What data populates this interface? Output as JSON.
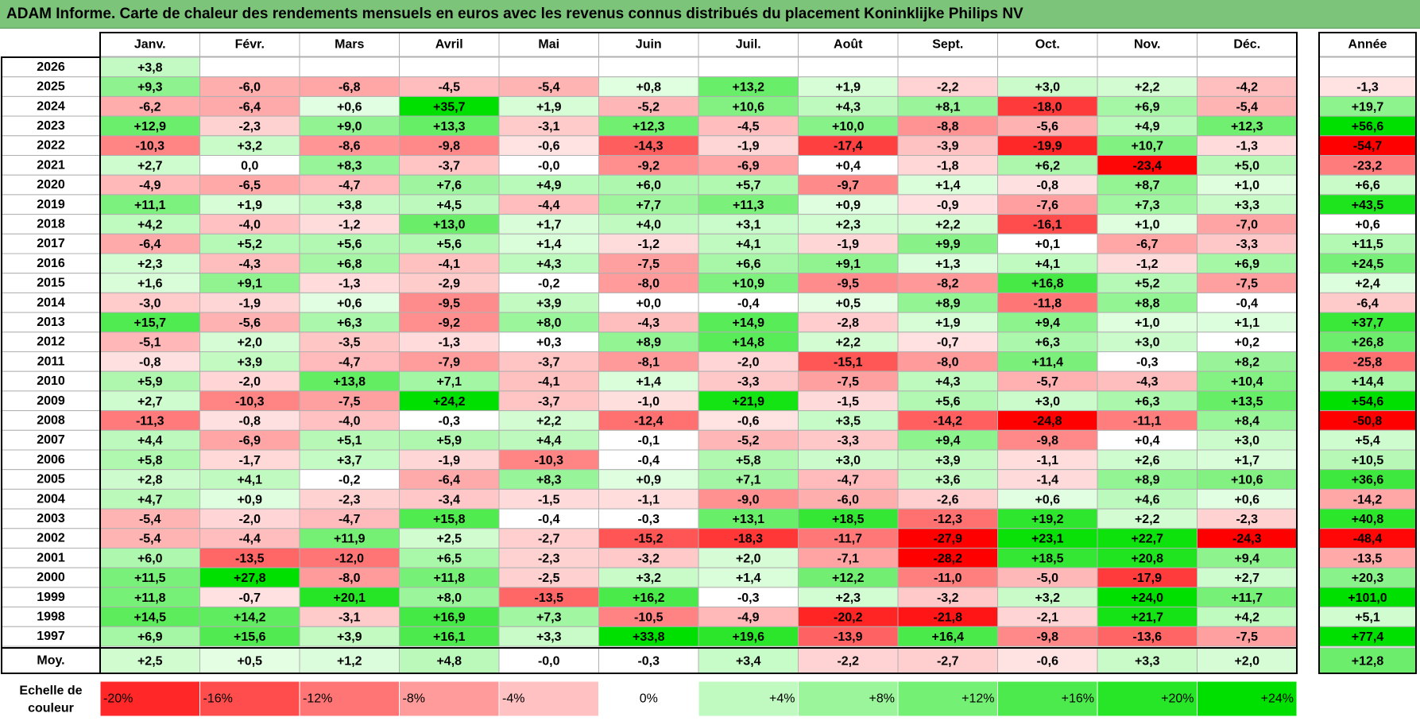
{
  "title": "ADAM Informe. Carte de chaleur des rendements mensuels en euros avec les revenus connus distribués du placement Koninklijke Philips NV",
  "chart_data": {
    "type": "heatmap",
    "columns": [
      "Janv.",
      "Févr.",
      "Mars",
      "Avril",
      "Mai",
      "Juin",
      "Juil.",
      "Août",
      "Sept.",
      "Oct.",
      "Nov.",
      "Déc."
    ],
    "year_column_label": "Année",
    "rows": [
      {
        "year": "2026",
        "months": [
          "+3,8",
          null,
          null,
          null,
          null,
          null,
          null,
          null,
          null,
          null,
          null,
          null
        ],
        "annual": ""
      },
      {
        "year": "2025",
        "months": [
          "+9,3",
          "-6,0",
          "-6,8",
          "-4,5",
          "-5,4",
          "+0,8",
          "+13,2",
          "+1,9",
          "-2,2",
          "+3,0",
          "+2,2",
          "-4,2"
        ],
        "annual": "-1,3"
      },
      {
        "year": "2024",
        "months": [
          "-6,2",
          "-6,4",
          "+0,6",
          "+35,7",
          "+1,9",
          "-5,2",
          "+10,6",
          "+4,3",
          "+8,1",
          "-18,0",
          "+6,9",
          "-5,4"
        ],
        "annual": "+19,7"
      },
      {
        "year": "2023",
        "months": [
          "+12,9",
          "-2,3",
          "+9,0",
          "+13,3",
          "-3,1",
          "+12,3",
          "-4,5",
          "+10,0",
          "-8,8",
          "-5,6",
          "+4,9",
          "+12,3"
        ],
        "annual": "+56,6"
      },
      {
        "year": "2022",
        "months": [
          "-10,3",
          "+3,2",
          "-8,6",
          "-9,8",
          "-0,6",
          "-14,3",
          "-1,9",
          "-17,4",
          "-3,9",
          "-19,9",
          "+10,7",
          "-1,3"
        ],
        "annual": "-54,7"
      },
      {
        "year": "2021",
        "months": [
          "+2,7",
          "0,0",
          "+8,3",
          "-3,7",
          "-0,0",
          "-9,2",
          "-6,9",
          "+0,4",
          "-1,8",
          "+6,2",
          "-23,4",
          "+5,0"
        ],
        "annual": "-23,2"
      },
      {
        "year": "2020",
        "months": [
          "-4,9",
          "-6,5",
          "-4,7",
          "+7,6",
          "+4,9",
          "+6,0",
          "+5,7",
          "-9,7",
          "+1,4",
          "-0,8",
          "+8,7",
          "+1,0"
        ],
        "annual": "+6,6"
      },
      {
        "year": "2019",
        "months": [
          "+11,1",
          "+1,9",
          "+3,8",
          "+4,5",
          "-4,4",
          "+7,7",
          "+11,3",
          "+0,9",
          "-0,9",
          "-7,6",
          "+7,3",
          "+3,3"
        ],
        "annual": "+43,5"
      },
      {
        "year": "2018",
        "months": [
          "+4,2",
          "-4,0",
          "-1,2",
          "+13,0",
          "+1,7",
          "+4,0",
          "+3,1",
          "+2,3",
          "+2,2",
          "-16,1",
          "+1,0",
          "-7,0"
        ],
        "annual": "+0,6"
      },
      {
        "year": "2017",
        "months": [
          "-6,4",
          "+5,2",
          "+5,6",
          "+5,6",
          "+1,4",
          "-1,2",
          "+4,1",
          "-1,9",
          "+9,9",
          "+0,1",
          "-6,7",
          "-3,3"
        ],
        "annual": "+11,5"
      },
      {
        "year": "2016",
        "months": [
          "+2,3",
          "-4,3",
          "+6,8",
          "-4,1",
          "+4,3",
          "-7,5",
          "+6,6",
          "+9,1",
          "+1,3",
          "+4,1",
          "-1,2",
          "+6,9"
        ],
        "annual": "+24,5"
      },
      {
        "year": "2015",
        "months": [
          "+1,6",
          "+9,1",
          "-1,3",
          "-2,9",
          "-0,2",
          "-8,0",
          "+10,9",
          "-9,5",
          "-8,2",
          "+16,8",
          "+5,2",
          "-7,5"
        ],
        "annual": "+2,4"
      },
      {
        "year": "2014",
        "months": [
          "-3,0",
          "-1,9",
          "+0,6",
          "-9,5",
          "+3,9",
          "+0,0",
          "-0,4",
          "+0,5",
          "+8,9",
          "-11,8",
          "+8,8",
          "-0,4"
        ],
        "annual": "-6,4"
      },
      {
        "year": "2013",
        "months": [
          "+15,7",
          "-5,6",
          "+6,3",
          "-9,2",
          "+8,0",
          "-4,3",
          "+14,9",
          "-2,8",
          "+1,9",
          "+9,4",
          "+1,0",
          "+1,1"
        ],
        "annual": "+37,7"
      },
      {
        "year": "2012",
        "months": [
          "-5,1",
          "+2,0",
          "-3,5",
          "-1,3",
          "+0,3",
          "+8,9",
          "+14,8",
          "+2,2",
          "-0,7",
          "+6,3",
          "+3,0",
          "+0,2"
        ],
        "annual": "+26,8"
      },
      {
        "year": "2011",
        "months": [
          "-0,8",
          "+3,9",
          "-4,7",
          "-7,9",
          "-3,7",
          "-8,1",
          "-2,0",
          "-15,1",
          "-8,0",
          "+11,4",
          "-0,3",
          "+8,2"
        ],
        "annual": "-25,8"
      },
      {
        "year": "2010",
        "months": [
          "+5,9",
          "-2,0",
          "+13,8",
          "+7,1",
          "-4,1",
          "+1,4",
          "-3,3",
          "-7,5",
          "+4,3",
          "-5,7",
          "-4,3",
          "+10,4"
        ],
        "annual": "+14,4"
      },
      {
        "year": "2009",
        "months": [
          "+2,7",
          "-10,3",
          "-7,5",
          "+24,2",
          "-3,7",
          "-1,0",
          "+21,9",
          "-1,5",
          "+5,6",
          "+3,0",
          "+6,3",
          "+13,5"
        ],
        "annual": "+54,6"
      },
      {
        "year": "2008",
        "months": [
          "-11,3",
          "-0,8",
          "-4,0",
          "-0,3",
          "+2,2",
          "-12,4",
          "-0,6",
          "+3,5",
          "-14,2",
          "-24,8",
          "-11,1",
          "+8,4"
        ],
        "annual": "-50,8"
      },
      {
        "year": "2007",
        "months": [
          "+4,4",
          "-6,9",
          "+5,1",
          "+5,9",
          "+4,4",
          "-0,1",
          "-5,2",
          "-3,3",
          "+9,4",
          "-9,8",
          "+0,4",
          "+3,0"
        ],
        "annual": "+5,4"
      },
      {
        "year": "2006",
        "months": [
          "+5,8",
          "-1,7",
          "+3,7",
          "-1,9",
          "-10,3",
          "-0,4",
          "+5,8",
          "+3,0",
          "+3,9",
          "-1,1",
          "+2,6",
          "+1,7"
        ],
        "annual": "+10,5"
      },
      {
        "year": "2005",
        "months": [
          "+2,8",
          "+4,1",
          "-0,2",
          "-6,4",
          "+8,3",
          "+0,9",
          "+7,1",
          "-4,7",
          "+3,6",
          "-1,4",
          "+8,9",
          "+10,6"
        ],
        "annual": "+36,6"
      },
      {
        "year": "2004",
        "months": [
          "+4,7",
          "+0,9",
          "-2,3",
          "-3,4",
          "-1,5",
          "-1,1",
          "-9,0",
          "-6,0",
          "-2,6",
          "+0,6",
          "+4,6",
          "+0,6"
        ],
        "annual": "-14,2"
      },
      {
        "year": "2003",
        "months": [
          "-5,4",
          "-2,0",
          "-4,7",
          "+15,8",
          "-0,4",
          "-0,3",
          "+13,1",
          "+18,5",
          "-12,3",
          "+19,2",
          "+2,2",
          "-2,3"
        ],
        "annual": "+40,8"
      },
      {
        "year": "2002",
        "months": [
          "-5,4",
          "-4,4",
          "+11,9",
          "+2,5",
          "-2,7",
          "-15,2",
          "-18,3",
          "-11,7",
          "-27,9",
          "+23,1",
          "+22,7",
          "-24,3"
        ],
        "annual": "-48,4"
      },
      {
        "year": "2001",
        "months": [
          "+6,0",
          "-13,5",
          "-12,0",
          "+6,5",
          "-2,3",
          "-3,2",
          "+2,0",
          "-7,1",
          "-28,2",
          "+18,5",
          "+20,8",
          "+9,4"
        ],
        "annual": "-13,5"
      },
      {
        "year": "2000",
        "months": [
          "+11,5",
          "+27,8",
          "-8,0",
          "+11,8",
          "-2,5",
          "+3,2",
          "+1,4",
          "+12,2",
          "-11,0",
          "-5,0",
          "-17,9",
          "+2,7"
        ],
        "annual": "+20,3"
      },
      {
        "year": "1999",
        "months": [
          "+11,8",
          "-0,7",
          "+20,1",
          "+8,0",
          "-13,5",
          "+16,2",
          "-0,3",
          "+2,3",
          "-3,2",
          "+3,2",
          "+24,0",
          "+11,7"
        ],
        "annual": "+101,0"
      },
      {
        "year": "1998",
        "months": [
          "+14,5",
          "+14,2",
          "-3,1",
          "+16,9",
          "+7,3",
          "-10,5",
          "-4,9",
          "-20,2",
          "-21,8",
          "-2,1",
          "+21,7",
          "+4,2"
        ],
        "annual": "+5,1"
      },
      {
        "year": "1997",
        "months": [
          "+6,9",
          "+15,6",
          "+3,9",
          "+16,1",
          "+3,3",
          "+33,8",
          "+19,6",
          "-13,9",
          "+16,4",
          "-9,8",
          "-13,6",
          "-7,5"
        ],
        "annual": "+77,4"
      }
    ],
    "average": {
      "label": "Moy.",
      "months": [
        "+2,5",
        "+0,5",
        "+1,2",
        "+4,8",
        "-0,0",
        "-0,3",
        "+3,4",
        "-2,2",
        "-2,7",
        "-0,6",
        "+3,3",
        "+2,0"
      ],
      "annual": "+12,8"
    },
    "scale": {
      "label_line1": "Echelle de",
      "label_line2": "couleur",
      "items": [
        "-20%",
        "-16%",
        "-12%",
        "-8%",
        "-4%",
        "0%",
        "+4%",
        "+8%",
        "+12%",
        "+16%",
        "+20%",
        "+24%"
      ]
    },
    "colors": {
      "title_bg": "#7cc47a",
      "neg_strong": "#ff0000",
      "pos_strong": "#00e000",
      "neutral": "#ffffff",
      "grid": "#b0b0b0"
    }
  }
}
